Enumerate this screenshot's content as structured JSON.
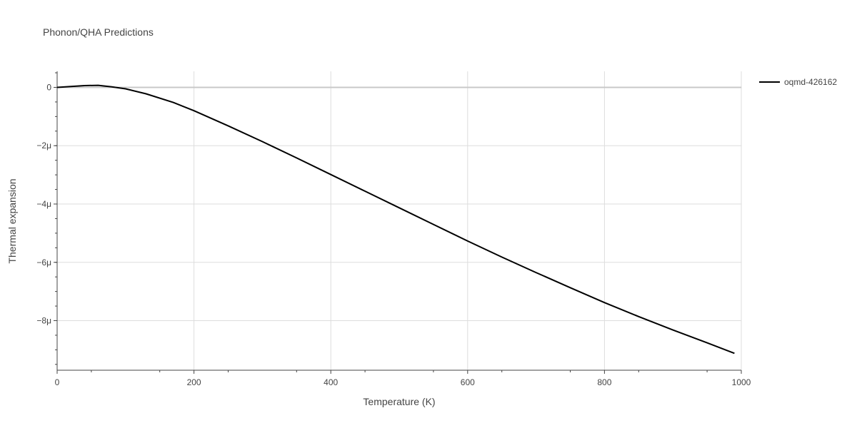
{
  "chart_data": {
    "type": "line",
    "title": "Phonon/QHA Predictions",
    "xlabel": "Temperature (K)",
    "ylabel": "Thermal expansion",
    "xlim": [
      0,
      1000
    ],
    "ylim": [
      -9.7e-06,
      5.5e-07
    ],
    "x_ticks": [
      0,
      200,
      400,
      600,
      800,
      1000
    ],
    "x_tick_labels": [
      "0",
      "200",
      "400",
      "600",
      "800",
      "1000"
    ],
    "y_ticks": [
      0,
      -2e-06,
      -4e-06,
      -6e-06,
      -8e-06
    ],
    "y_tick_labels": [
      "0",
      "−2μ",
      "−4μ",
      "−6μ",
      "−8μ"
    ],
    "grid": true,
    "legend_position": "top-right",
    "series": [
      {
        "name": "oqmd-426162",
        "color": "#000000",
        "x": [
          0,
          20,
          40,
          60,
          80,
          100,
          130,
          170,
          200,
          250,
          300,
          350,
          400,
          450,
          500,
          550,
          600,
          650,
          700,
          750,
          800,
          850,
          900,
          950,
          990
        ],
        "y": [
          0,
          3e-08,
          6e-08,
          7e-08,
          2e-08,
          -5e-08,
          -2.2e-07,
          -5.2e-07,
          -8e-07,
          -1.32e-06,
          -1.86e-06,
          -2.42e-06,
          -2.99e-06,
          -3.56e-06,
          -4.13e-06,
          -4.7e-06,
          -5.27e-06,
          -5.82e-06,
          -6.35e-06,
          -6.87e-06,
          -7.38e-06,
          -7.86e-06,
          -8.32e-06,
          -8.76e-06,
          -9.12e-06
        ]
      }
    ]
  }
}
